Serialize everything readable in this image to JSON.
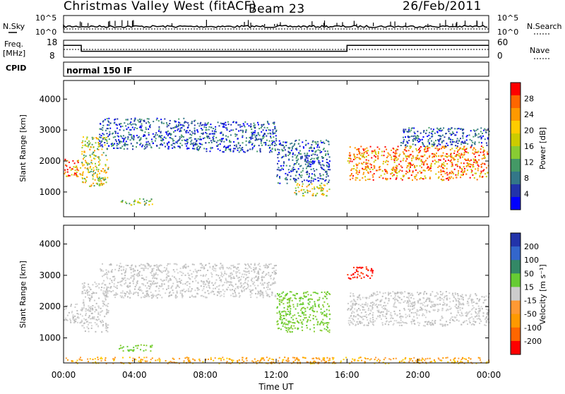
{
  "header": {
    "title": "Christmas Valley West (fitACF)",
    "beam": "Beam 23",
    "date": "26/Feb/2011"
  },
  "noise_panel": {
    "left_label": "N.Sky",
    "right_label": "N.Search",
    "left_ticks": [
      "10^5",
      "10^0"
    ],
    "right_ticks": [
      "10^5",
      "10^0"
    ]
  },
  "freq_panel": {
    "left_label_1": "Freq.",
    "left_label_2": "[MHz]",
    "right_label": "Nave",
    "left_ticks": [
      "18",
      "8"
    ],
    "right_ticks": [
      "60",
      "0"
    ],
    "freq_segments": [
      {
        "x_start": "00:00",
        "x_end": "01:00",
        "value": 15
      },
      {
        "x_start": "01:00",
        "x_end": "16:00",
        "value": 11.5
      },
      {
        "x_start": "16:00",
        "x_end": "24:00",
        "value": 15
      }
    ]
  },
  "cpid": {
    "label": "CPID",
    "value": "normal 150 IF"
  },
  "chart_data": [
    {
      "type": "heatmap",
      "name": "Power",
      "xlabel": "",
      "ylabel": "Slant Range [km]",
      "xlim": [
        "00:00",
        "24:00"
      ],
      "ylim": [
        200,
        4600
      ],
      "yticks": [
        1000,
        2000,
        3000,
        4000
      ],
      "colorbar": {
        "label": "Power [dB]",
        "ticks": [
          "28",
          "24",
          "20",
          "16",
          "12",
          "8",
          "4"
        ],
        "colors": [
          "#ff0000",
          "#ff6600",
          "#ff9900",
          "#ffcc00",
          "#cccc00",
          "#88cc33",
          "#449966",
          "#337788",
          "#2233aa",
          "#0000ff"
        ]
      },
      "regions": [
        {
          "t0": "00:00",
          "t1": "01:00",
          "r0": 1500,
          "r1": 2100,
          "level": "high"
        },
        {
          "t0": "01:00",
          "t1": "02:30",
          "r0": 1200,
          "r1": 2800,
          "level": "mid"
        },
        {
          "t0": "02:00",
          "t1": "07:30",
          "r0": 2400,
          "r1": 3400,
          "level": "low"
        },
        {
          "t0": "07:30",
          "t1": "12:00",
          "r0": 2300,
          "r1": 3300,
          "level": "low"
        },
        {
          "t0": "12:00",
          "t1": "15:00",
          "r0": 1300,
          "r1": 2700,
          "level": "low"
        },
        {
          "t0": "13:00",
          "t1": "15:00",
          "r0": 900,
          "r1": 1300,
          "level": "mid"
        },
        {
          "t0": "03:00",
          "t1": "05:00",
          "r0": 600,
          "r1": 800,
          "level": "mid"
        },
        {
          "t0": "16:00",
          "t1": "24:00",
          "r0": 1400,
          "r1": 2500,
          "level": "high"
        },
        {
          "t0": "19:00",
          "t1": "24:00",
          "r0": 2500,
          "r1": 3100,
          "level": "low"
        }
      ]
    },
    {
      "type": "heatmap",
      "name": "Velocity",
      "xlabel": "Time UT",
      "ylabel": "Slant Range [km]",
      "xlim": [
        "00:00",
        "24:00"
      ],
      "ylim": [
        200,
        4600
      ],
      "yticks": [
        1000,
        2000,
        3000,
        4000
      ],
      "xticks": [
        "00:00",
        "04:00",
        "08:00",
        "12:00",
        "16:00",
        "20:00",
        "00:00"
      ],
      "colorbar": {
        "label": "Velocity [m s⁻¹]",
        "ticks": [
          "200",
          "100",
          "50",
          "15",
          "-15",
          "-50",
          "-100",
          "-200"
        ],
        "colors": [
          "#2233aa",
          "#3366cc",
          "#338866",
          "#66cc33",
          "#cccccc",
          "#ff9933",
          "#ff9900",
          "#ff6600",
          "#ff0000"
        ]
      },
      "regions": [
        {
          "t0": "00:00",
          "t1": "01:00",
          "r0": 1500,
          "r1": 2100,
          "level": "gray"
        },
        {
          "t0": "01:00",
          "t1": "02:30",
          "r0": 1200,
          "r1": 2800,
          "level": "gray"
        },
        {
          "t0": "02:00",
          "t1": "12:00",
          "r0": 2300,
          "r1": 3400,
          "level": "gray"
        },
        {
          "t0": "12:00",
          "t1": "15:00",
          "r0": 1200,
          "r1": 2500,
          "level": "green"
        },
        {
          "t0": "03:00",
          "t1": "05:00",
          "r0": 600,
          "r1": 800,
          "level": "green"
        },
        {
          "t0": "16:00",
          "t1": "24:00",
          "r0": 1400,
          "r1": 2500,
          "level": "gray"
        },
        {
          "t0": "16:00",
          "t1": "17:30",
          "r0": 2900,
          "r1": 3300,
          "level": "red"
        },
        {
          "t0": "00:00",
          "t1": "24:00",
          "r0": 200,
          "r1": 400,
          "level": "orange"
        }
      ]
    }
  ]
}
